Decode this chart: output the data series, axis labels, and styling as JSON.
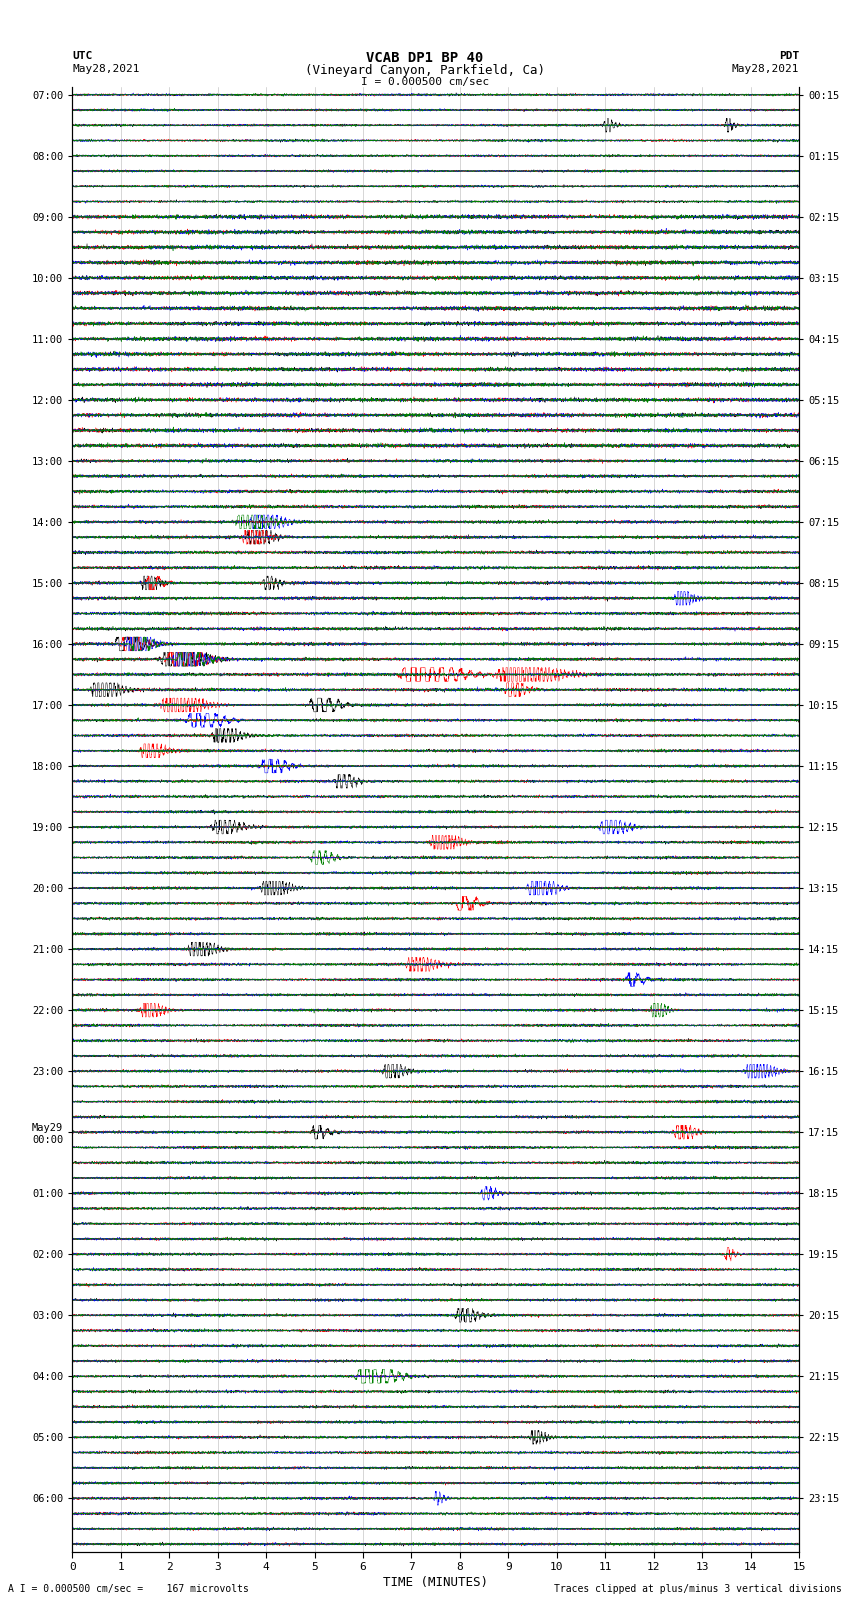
{
  "title_line1": "VCAB DP1 BP 40",
  "title_line2": "(Vineyard Canyon, Parkfield, Ca)",
  "scale_label": "I = 0.000500 cm/sec",
  "footer_left": "A I = 0.000500 cm/sec =    167 microvolts",
  "footer_right": "Traces clipped at plus/minus 3 vertical divisions",
  "utc_label": "UTC",
  "utc_date": "May28,2021",
  "pdt_label": "PDT",
  "pdt_date": "May28,2021",
  "xlabel": "TIME (MINUTES)",
  "xmin": 0,
  "xmax": 15,
  "xticks": [
    0,
    1,
    2,
    3,
    4,
    5,
    6,
    7,
    8,
    9,
    10,
    11,
    12,
    13,
    14,
    15
  ],
  "colors": [
    "black",
    "red",
    "blue",
    "green"
  ],
  "n_rows": 96,
  "traces_per_row": 4,
  "bg_color": "white",
  "trace_linewidth": 0.35,
  "grid_color": "#888888",
  "left_tick_times": [
    "07:00",
    "",
    "",
    "",
    "08:00",
    "",
    "",
    "",
    "09:00",
    "",
    "",
    "",
    "10:00",
    "",
    "",
    "",
    "11:00",
    "",
    "",
    "",
    "12:00",
    "",
    "",
    "",
    "13:00",
    "",
    "",
    "",
    "14:00",
    "",
    "",
    "",
    "15:00",
    "",
    "",
    "",
    "16:00",
    "",
    "",
    "",
    "17:00",
    "",
    "",
    "",
    "18:00",
    "",
    "",
    "",
    "19:00",
    "",
    "",
    "",
    "20:00",
    "",
    "",
    "",
    "21:00",
    "",
    "",
    "",
    "22:00",
    "",
    "",
    "",
    "23:00",
    "",
    "",
    "",
    "May29\n00:00",
    "",
    "",
    "",
    "01:00",
    "",
    "",
    "",
    "02:00",
    "",
    "",
    "",
    "03:00",
    "",
    "",
    "",
    "04:00",
    "",
    "",
    "",
    "05:00",
    "",
    "",
    "",
    "06:00",
    "",
    "",
    ""
  ],
  "right_tick_times": [
    "00:15",
    "",
    "",
    "",
    "01:15",
    "",
    "",
    "",
    "02:15",
    "",
    "",
    "",
    "03:15",
    "",
    "",
    "",
    "04:15",
    "",
    "",
    "",
    "05:15",
    "",
    "",
    "",
    "06:15",
    "",
    "",
    "",
    "07:15",
    "",
    "",
    "",
    "08:15",
    "",
    "",
    "",
    "09:15",
    "",
    "",
    "",
    "10:15",
    "",
    "",
    "",
    "11:15",
    "",
    "",
    "",
    "12:15",
    "",
    "",
    "",
    "13:15",
    "",
    "",
    "",
    "14:15",
    "",
    "",
    "",
    "15:15",
    "",
    "",
    "",
    "16:15",
    "",
    "",
    "",
    "17:15",
    "",
    "",
    "",
    "18:15",
    "",
    "",
    "",
    "19:15",
    "",
    "",
    "",
    "20:15",
    "",
    "",
    "",
    "21:15",
    "",
    "",
    "",
    "22:15",
    "",
    "",
    "",
    "23:15",
    "",
    "",
    ""
  ],
  "event_rows": [
    [
      0,
      8,
      0.8,
      0.15,
      11
    ],
    [
      0,
      8,
      0.9,
      0.12,
      13.5
    ],
    [
      28,
      3,
      2.5,
      0.3,
      3.5
    ],
    [
      28,
      2,
      3.0,
      0.3,
      3.8
    ],
    [
      29,
      1,
      2.0,
      0.25,
      3.6
    ],
    [
      29,
      0,
      2.0,
      0.25,
      3.7
    ],
    [
      32,
      0,
      1.5,
      0.2,
      1.5
    ],
    [
      32,
      1,
      1.2,
      0.2,
      1.6
    ],
    [
      32,
      0,
      1.0,
      0.2,
      4.0
    ],
    [
      33,
      2,
      1.8,
      0.2,
      12.5
    ],
    [
      36,
      0,
      2.5,
      0.3,
      1.0
    ],
    [
      36,
      1,
      2.0,
      0.25,
      1.1
    ],
    [
      36,
      2,
      2.2,
      0.3,
      1.2
    ],
    [
      36,
      3,
      1.8,
      0.25,
      1.3
    ],
    [
      37,
      0,
      3.5,
      0.4,
      2.0
    ],
    [
      37,
      1,
      3.0,
      0.35,
      2.1
    ],
    [
      37,
      2,
      2.5,
      0.3,
      2.2
    ],
    [
      37,
      3,
      2.0,
      0.3,
      2.3
    ],
    [
      38,
      1,
      4.5,
      0.5,
      7.0
    ],
    [
      38,
      1,
      4.0,
      0.5,
      9.0
    ],
    [
      39,
      0,
      2.0,
      0.3,
      0.5
    ],
    [
      39,
      1,
      1.5,
      0.25,
      9.0
    ],
    [
      40,
      1,
      2.5,
      0.4,
      2.0
    ],
    [
      40,
      0,
      2.0,
      0.3,
      5.0
    ],
    [
      41,
      2,
      2.0,
      0.35,
      2.5
    ],
    [
      42,
      0,
      1.8,
      0.3,
      3.0
    ],
    [
      43,
      1,
      1.5,
      0.3,
      1.5
    ],
    [
      44,
      2,
      1.5,
      0.3,
      4.0
    ],
    [
      45,
      0,
      1.2,
      0.25,
      5.5
    ],
    [
      48,
      0,
      1.5,
      0.3,
      3.0
    ],
    [
      48,
      2,
      1.8,
      0.3,
      11.0
    ],
    [
      49,
      1,
      2.0,
      0.3,
      7.5
    ],
    [
      50,
      3,
      1.5,
      0.25,
      5.0
    ],
    [
      52,
      0,
      1.8,
      0.3,
      4.0
    ],
    [
      52,
      2,
      2.0,
      0.3,
      9.5
    ],
    [
      53,
      1,
      1.5,
      0.25,
      8.0
    ],
    [
      56,
      0,
      1.5,
      0.3,
      2.5
    ],
    [
      57,
      1,
      1.8,
      0.3,
      7.0
    ],
    [
      58,
      2,
      1.2,
      0.2,
      11.5
    ],
    [
      60,
      1,
      1.5,
      0.25,
      1.5
    ],
    [
      60,
      3,
      1.2,
      0.2,
      12.0
    ],
    [
      64,
      0,
      1.5,
      0.25,
      6.5
    ],
    [
      64,
      2,
      1.8,
      0.3,
      14.0
    ],
    [
      68,
      0,
      1.2,
      0.2,
      5.0
    ],
    [
      68,
      1,
      1.5,
      0.25,
      12.5
    ],
    [
      72,
      2,
      1.0,
      0.2,
      8.5
    ],
    [
      76,
      1,
      0.8,
      0.15,
      13.5
    ],
    [
      80,
      0,
      1.5,
      0.25,
      8.0
    ],
    [
      84,
      3,
      2.5,
      0.4,
      6.0
    ],
    [
      88,
      0,
      1.0,
      0.2,
      9.5
    ],
    [
      92,
      2,
      0.8,
      0.15,
      7.5
    ]
  ]
}
